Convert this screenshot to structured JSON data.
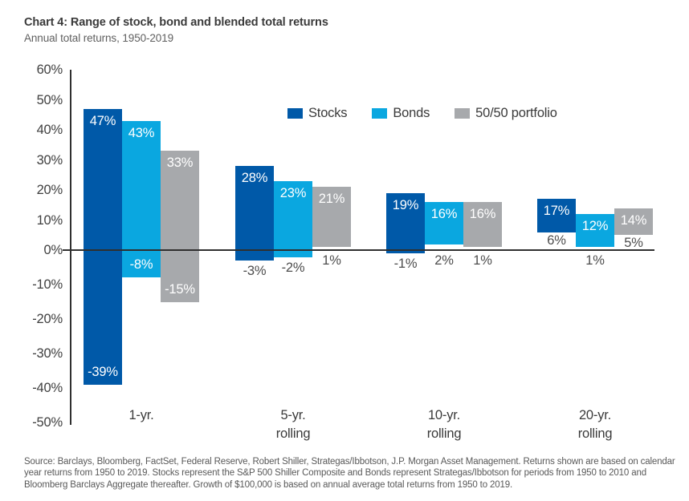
{
  "chart_data": {
    "type": "bar",
    "subtype": "floating-range-columns",
    "title": "Chart 4: Range of stock, bond and blended total returns",
    "subtitle": "Annual total returns, 1950-2019",
    "categories": [
      "1-yr.",
      "5-yr.\nrolling",
      "10-yr.\nrolling",
      "20-yr.\nrolling"
    ],
    "series": [
      {
        "name": "Stocks",
        "color": "#0059A8",
        "ranges": [
          {
            "min": -39,
            "max": 47
          },
          {
            "min": -3,
            "max": 28
          },
          {
            "min": -1,
            "max": 19
          },
          {
            "min": 6,
            "max": 17
          }
        ]
      },
      {
        "name": "Bonds",
        "color": "#0AA7E0",
        "ranges": [
          {
            "min": -8,
            "max": 43
          },
          {
            "min": -2,
            "max": 23
          },
          {
            "min": 2,
            "max": 16
          },
          {
            "min": 1,
            "max": 12
          }
        ]
      },
      {
        "name": "50/50 portfolio",
        "color": "#A7A9AC",
        "ranges": [
          {
            "min": -15,
            "max": 33
          },
          {
            "min": 1,
            "max": 21
          },
          {
            "min": 1,
            "max": 16
          },
          {
            "min": 5,
            "max": 14
          }
        ]
      }
    ],
    "label_format": "{value}%",
    "y_axis": {
      "min": -50,
      "max": 60,
      "step": 10,
      "tick_labels": [
        "60%",
        "50%",
        "40%",
        "30%",
        "20%",
        "10%",
        "0%",
        "-10%",
        "-20%",
        "-30%",
        "-40%",
        "-50%"
      ]
    },
    "grid": false,
    "legend_position": "top-inside",
    "baseline_at_zero": true
  },
  "footer": {
    "source": "Source: Barclays, Bloomberg, FactSet, Federal Reserve, Robert Shiller, Strategas/Ibbotson, J.P. Morgan Asset Management. Returns shown are based on calendar year returns from 1950 to 2019. Stocks represent the S&P 500 Shiller Composite and Bonds represent Strategas/Ibbotson for periods from 1950 to 2010 and Bloomberg Barclays Aggregate thereafter. Growth of $100,000 is based on annual average total returns from 1950 to 2019."
  },
  "colors": {
    "stocks": "#0059A8",
    "bonds": "#0AA7E0",
    "blend_gray": "#A7A9AC",
    "axis": "#2F2F2F",
    "title_text": "#3A3A3A",
    "muted_text": "#595959",
    "label_outside": "#4D4D4D",
    "label_inside": "#FFFFFF",
    "background": "#FFFFFF"
  }
}
